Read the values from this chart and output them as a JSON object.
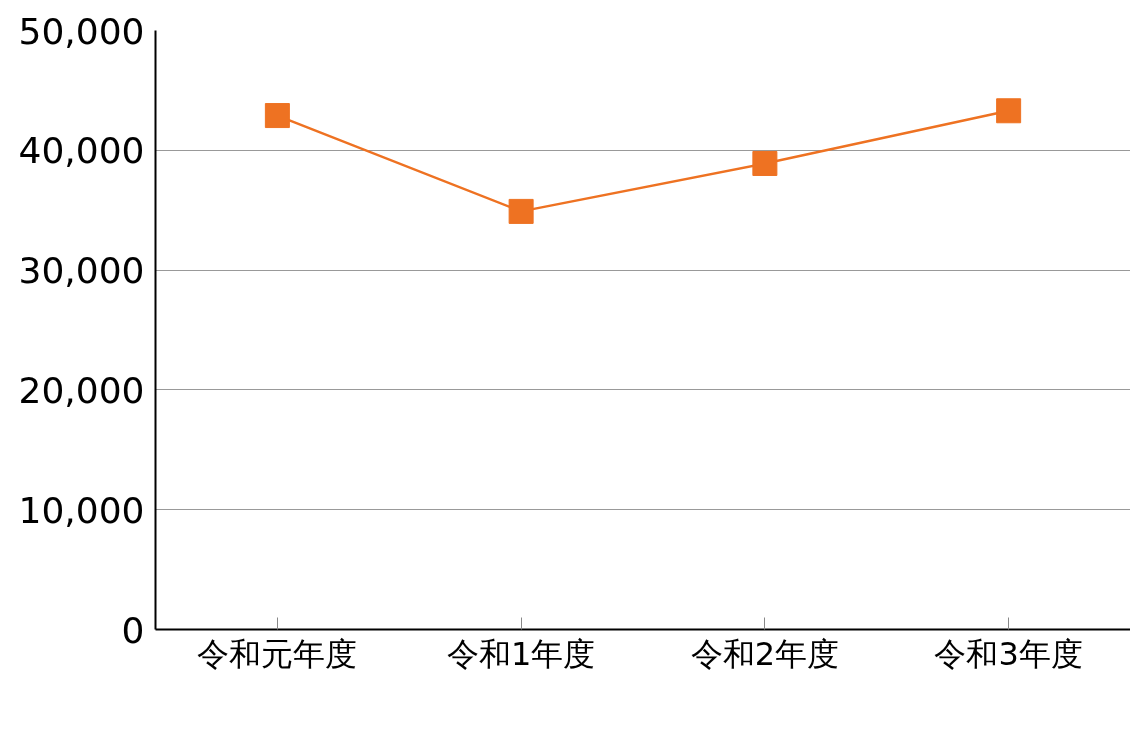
{
  "chart_data": {
    "type": "line",
    "categories": [
      "令和元年度",
      "令和1年度",
      "令和2年度",
      "令和3年度"
    ],
    "series": [
      {
        "color": "#ee7222",
        "values": [
          42900,
          34900,
          38900,
          43300
        ]
      }
    ],
    "ylim": [
      0,
      50000
    ],
    "yticks": [
      {
        "value": 0,
        "label": "0"
      },
      {
        "value": 10000,
        "label": "10,000"
      },
      {
        "value": 20000,
        "label": "20,000"
      },
      {
        "value": 30000,
        "label": "30,000"
      },
      {
        "value": 40000,
        "label": "40,000"
      },
      {
        "value": 50000,
        "label": "50,000"
      }
    ],
    "grid": "y",
    "marker": "square",
    "line_style": "solid"
  }
}
